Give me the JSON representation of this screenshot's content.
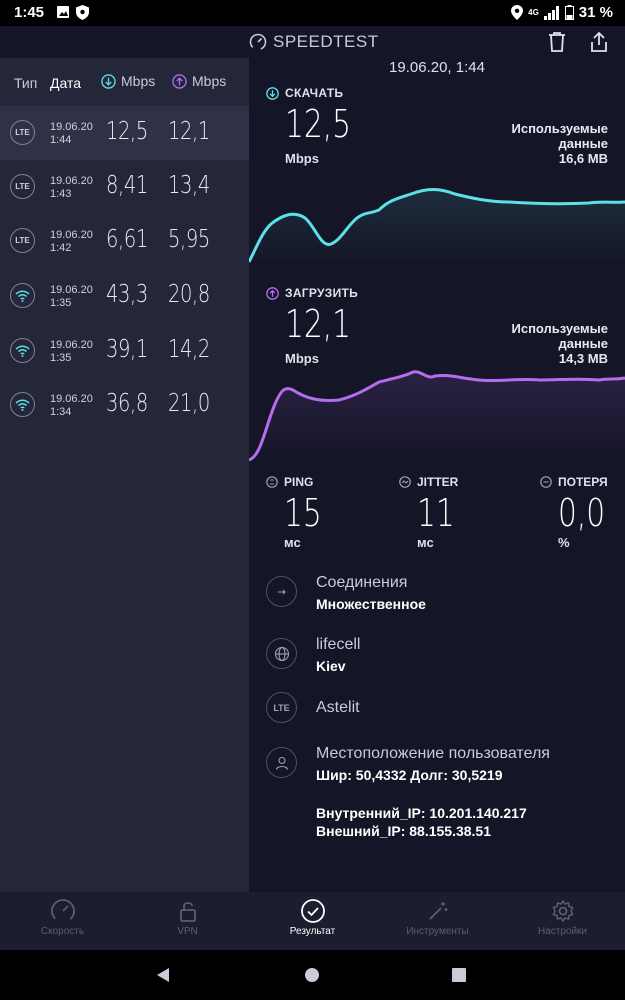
{
  "status_bar": {
    "time": "1:45",
    "battery": "31 %",
    "network": "4G"
  },
  "header": {
    "brand": "SPEEDTEST"
  },
  "history": {
    "headers": {
      "type": "Тип",
      "date": "Дата",
      "download": "Mbps",
      "upload": "Mbps"
    },
    "rows": [
      {
        "type": "LTE",
        "date": "19.06.20",
        "time": "1:44",
        "download": "12,5",
        "upload": "12,1",
        "active": true
      },
      {
        "type": "LTE",
        "date": "19.06.20",
        "time": "1:43",
        "download": "8,41",
        "upload": "13,4"
      },
      {
        "type": "LTE",
        "date": "19.06.20",
        "time": "1:42",
        "download": "6,61",
        "upload": "5,95"
      },
      {
        "type": "wifi",
        "date": "19.06.20",
        "time": "1:35",
        "download": "43,3",
        "upload": "20,8"
      },
      {
        "type": "wifi",
        "date": "19.06.20",
        "time": "1:35",
        "download": "39,1",
        "upload": "14,2"
      },
      {
        "type": "wifi",
        "date": "19.06.20",
        "time": "1:34",
        "download": "36,8",
        "upload": "21,0"
      }
    ]
  },
  "result": {
    "timestamp": "19.06.20, 1:44",
    "download": {
      "label": "СКАЧАТЬ",
      "value": "12,5",
      "unit": "Mbps",
      "used_label_1": "Используемые",
      "used_label_2": "данные",
      "used_value": "16,6 MB"
    },
    "upload": {
      "label": "ЗАГРУЗИТЬ",
      "value": "12,1",
      "unit": "Mbps",
      "used_label_1": "Используемые",
      "used_label_2": "данные",
      "used_value": "14,3 MB"
    },
    "ping": {
      "label": "PING",
      "value": "15",
      "unit": "мс"
    },
    "jitter": {
      "label": "JITTER",
      "value": "11",
      "unit": "мс"
    },
    "loss": {
      "label": "ПОТЕРЯ",
      "value": "0,0",
      "unit": "%"
    },
    "connections": {
      "label": "Соединения",
      "value": "Множественное"
    },
    "server": {
      "label": "lifecell",
      "value": "Kiev"
    },
    "provider": {
      "badge": "LTE",
      "label": "Astelit"
    },
    "location": {
      "label": "Местоположение пользователя",
      "value": "Шир: 50,4332 Долг: 30,5219"
    },
    "internal_ip": "Внутренний_IP: 10.201.140.217",
    "external_ip": "Внешний_IP: 88.155.38.51"
  },
  "nav": {
    "speed": "Скорость",
    "vpn": "VPN",
    "results": "Результат",
    "tools": "Инструменты",
    "settings": "Настройки"
  },
  "colors": {
    "download": "#5ce1e6",
    "upload": "#b46cf0",
    "accent_active": "#ffffff"
  }
}
